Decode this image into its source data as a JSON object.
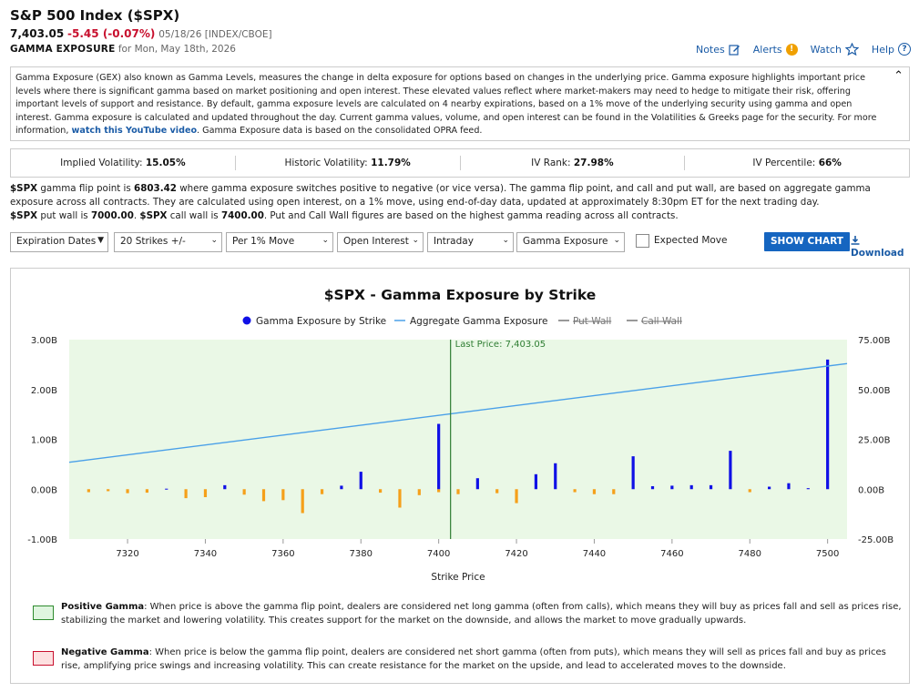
{
  "header": {
    "title": "S&P 500 Index ($SPX)",
    "price": "7,403.05",
    "change": "-5.45 (-0.07%)",
    "meta": "05/18/26 [INDEX/CBOE]",
    "subtitle_label": "GAMMA EXPOSURE",
    "subtitle_date": "for Mon, May 18th, 2026"
  },
  "toplinks": {
    "notes": "Notes",
    "alerts": "Alerts",
    "watch": "Watch",
    "help": "Help"
  },
  "description": {
    "text": "Gamma Exposure (GEX) also known as Gamma Levels, measures the change in delta exposure for options based on changes in the underlying price. Gamma exposure highlights important price levels where there is significant gamma based on market positioning and open interest. These elevated values reflect where market-makers may need to hedge to mitigate their risk, offering important levels of support and resistance. By default, gamma exposure levels are calculated on 4 nearby expirations, based on a 1% move of the underlying security using gamma and open interest. Gamma exposure is calculated and updated throughout the day. Current gamma values, volume, and open interest can be found in the Volatilities & Greeks page for the security. For more information,",
    "link": "watch this YouTube video",
    "tail": ". Gamma Exposure data is based on the consolidated OPRA feed."
  },
  "stats": [
    {
      "label": "Implied Volatility:",
      "value": "15.05%"
    },
    {
      "label": "Historic Volatility:",
      "value": "11.79%"
    },
    {
      "label": "IV Rank:",
      "value": "27.98%"
    },
    {
      "label": "IV Percentile:",
      "value": "66%"
    }
  ],
  "info": {
    "sym": "$SPX",
    "p1": " gamma flip point is ",
    "flip": "6803.42",
    "p2": " where gamma exposure switches positive to negative (or vice versa). The gamma flip point, and call and put wall, are based on aggregate gamma exposure across all contracts. They are calculated using open interest, on a 1% move, using end-of-day data, updated at approximately 8:30pm ET for the next trading day.",
    "sym2": "$SPX",
    "p3": " put wall is ",
    "putwall": "7000.00",
    "p4": ". ",
    "sym3": "$SPX",
    "p5": " call wall is ",
    "callwall": "7400.00",
    "p6": ". Put and Call Wall figures are based on the highest gamma reading across all contracts."
  },
  "controls": {
    "expiration": "Expiration Dates",
    "strikes": "20 Strikes +/-",
    "move": "Per 1% Move",
    "oi": "Open Interest",
    "period": "Intraday",
    "metric": "Gamma Exposure",
    "expected_move": "Expected Move",
    "show_chart": "SHOW CHART",
    "download": "Download"
  },
  "chart_data": {
    "type": "bar",
    "title": "$SPX - Gamma Exposure by Strike",
    "xlabel": "Strike Price",
    "legend": [
      "Gamma Exposure by Strike",
      "Aggregate Gamma Exposure",
      "Put Wall",
      "Call Wall"
    ],
    "left_axis": {
      "ticks": [
        "3.00B",
        "2.00B",
        "1.00B",
        "0.00B",
        "-1.00B"
      ],
      "range": [
        -1.0,
        3.0
      ]
    },
    "right_axis": {
      "ticks": [
        "75.00B",
        "50.00B",
        "25.00B",
        "0.00B",
        "-25.00B"
      ],
      "range": [
        -25,
        75
      ]
    },
    "x_ticks": [
      "7320",
      "7340",
      "7360",
      "7380",
      "7400",
      "7420",
      "7440",
      "7460",
      "7480",
      "7500"
    ],
    "x_range": [
      7305,
      7505
    ],
    "last_price_label": "Last Price: 7,403.05",
    "last_price": 7403.05,
    "positive_color": "#1010e6",
    "negative_color": "#f5a01a",
    "line_color": "#4aa0e8",
    "bars": [
      [
        7310,
        -0.06
      ],
      [
        7315,
        -0.04
      ],
      [
        7320,
        -0.08
      ],
      [
        7325,
        -0.07
      ],
      [
        7330,
        0.01
      ],
      [
        7335,
        -0.18
      ],
      [
        7340,
        -0.16
      ],
      [
        7345,
        0.08
      ],
      [
        7350,
        -0.11
      ],
      [
        7355,
        -0.24
      ],
      [
        7360,
        -0.22
      ],
      [
        7365,
        -0.48
      ],
      [
        7370,
        -0.1
      ],
      [
        7375,
        0.07
      ],
      [
        7380,
        0.35
      ],
      [
        7385,
        -0.07
      ],
      [
        7390,
        -0.37
      ],
      [
        7395,
        -0.12
      ],
      [
        7400,
        -0.06
      ],
      [
        7400,
        1.31
      ],
      [
        7405,
        -0.1
      ],
      [
        7410,
        0.22
      ],
      [
        7415,
        -0.08
      ],
      [
        7420,
        -0.28
      ],
      [
        7425,
        0.3
      ],
      [
        7430,
        0.52
      ],
      [
        7435,
        -0.06
      ],
      [
        7440,
        -0.1
      ],
      [
        7445,
        -0.1
      ],
      [
        7450,
        0.66
      ],
      [
        7455,
        0.06
      ],
      [
        7460,
        0.07
      ],
      [
        7465,
        0.08
      ],
      [
        7470,
        0.08
      ],
      [
        7475,
        0.77
      ],
      [
        7480,
        -0.06
      ],
      [
        7485,
        0.05
      ],
      [
        7490,
        0.12
      ],
      [
        7495,
        0.02
      ],
      [
        7500,
        2.6
      ]
    ],
    "aggregate": {
      "x": [
        7305,
        7505
      ],
      "y": [
        13.5,
        63.0
      ]
    }
  },
  "legend_notes": {
    "positive_title": "Positive Gamma",
    "positive_text": ": When price is above the gamma flip point, dealers are considered net long gamma (often from calls), which means they will buy as prices fall and sell as prices rise, stabilizing the market and lowering volatility. This creates support for the market on the downside, and allows the market to move gradually upwards.",
    "positive_color": "#dff5df",
    "negative_title": "Negative Gamma",
    "negative_text": ": When price is below the gamma flip point, dealers are considered net short gamma (often from puts), which means they will sell as prices fall and buy as prices rise, amplifying price swings and increasing volatility. This can create resistance for the market on the upside, and lead to accelerated moves to the downside.",
    "negative_color": "#fde0e0"
  }
}
